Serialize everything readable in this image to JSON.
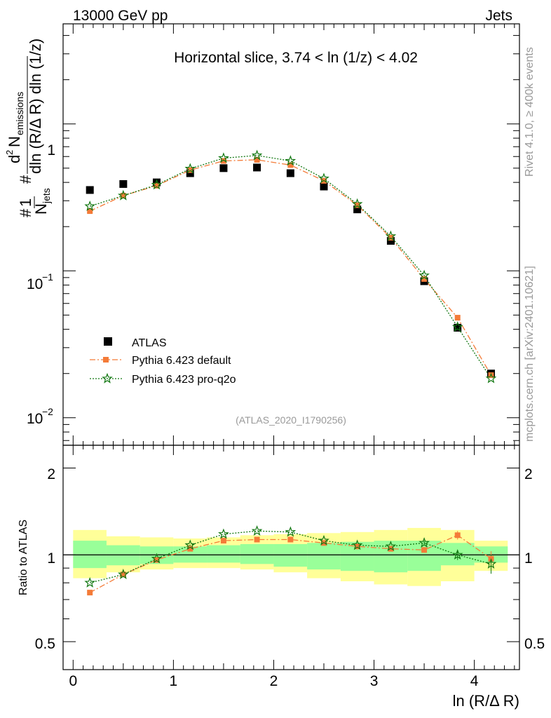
{
  "header": {
    "left": "13000 GeV pp",
    "right": "Jets"
  },
  "side_text": {
    "rivet": "Rivet 4.1.0, ≥ 400k events",
    "mcplots": "mcplots.cern.ch [arXiv:2401.10621]"
  },
  "analysis_id": "(ATLAS_2020_I1790256)",
  "chart_data": [
    {
      "type": "scatter",
      "panel": "main",
      "title": "Horizontal slice, 3.74 < ln (1/z) < 4.02",
      "ylabel": "1/N_jets d²N_emissions / dln(R/ΔR) dln(1/z)",
      "yscale": "log",
      "xlim": [
        -0.1,
        4.45
      ],
      "ylim": [
        0.0065,
        4.8
      ],
      "y_ticks": [
        {
          "value": 0.01,
          "base": "10",
          "exp": "−2"
        },
        {
          "value": 0.1,
          "base": "10",
          "exp": "−1"
        },
        {
          "value": 1,
          "base": "1",
          "exp": ""
        }
      ],
      "x": [
        0.167,
        0.5,
        0.833,
        1.167,
        1.5,
        1.833,
        2.167,
        2.5,
        2.833,
        3.167,
        3.5,
        3.833,
        4.167
      ],
      "series": [
        {
          "name": "ATLAS",
          "color": "#000000",
          "marker": "square",
          "values": [
            0.355,
            0.39,
            0.4,
            0.462,
            0.5,
            0.505,
            0.462,
            0.375,
            0.262,
            0.16,
            0.085,
            0.041,
            0.02
          ]
        },
        {
          "name": "Pythia 6.423 default",
          "color": "#f47b38",
          "marker": "square-small",
          "line": "dash-dot",
          "values": [
            0.255,
            0.325,
            0.38,
            0.485,
            0.56,
            0.57,
            0.525,
            0.41,
            0.28,
            0.168,
            0.088,
            0.048,
            0.0195
          ]
        },
        {
          "name": "Pythia 6.423 pro-q2o",
          "color": "#117711",
          "marker": "star",
          "line": "dotted",
          "values": [
            0.275,
            0.325,
            0.385,
            0.495,
            0.585,
            0.61,
            0.56,
            0.425,
            0.285,
            0.172,
            0.093,
            0.0415,
            0.0185
          ]
        }
      ]
    },
    {
      "type": "line",
      "panel": "ratio",
      "xlabel": "ln (R/Δ R)",
      "ylabel": "Ratio to ATLAS",
      "yscale": "log",
      "xlim": [
        -0.1,
        4.45
      ],
      "ylim": [
        0.4,
        2.4
      ],
      "y_tick_labels": [
        {
          "value": 0.5,
          "label": "0.5"
        },
        {
          "value": 1,
          "label": "1"
        },
        {
          "value": 2,
          "label": "2"
        }
      ],
      "x_tick_labels": [
        {
          "value": 0,
          "label": "0"
        },
        {
          "value": 1,
          "label": "1"
        },
        {
          "value": 2,
          "label": "2"
        },
        {
          "value": 3,
          "label": "3"
        },
        {
          "value": 4,
          "label": "4"
        }
      ],
      "bin_edges": [
        0,
        0.333,
        0.667,
        1.0,
        1.333,
        1.667,
        2.0,
        2.333,
        2.667,
        3.0,
        3.333,
        3.667,
        4.0,
        4.333
      ],
      "band_stat": [
        [
          0.9,
          1.12
        ],
        [
          0.92,
          1.08
        ],
        [
          0.93,
          1.07
        ],
        [
          0.94,
          1.07
        ],
        [
          0.94,
          1.08
        ],
        [
          0.93,
          1.09
        ],
        [
          0.91,
          1.09
        ],
        [
          0.89,
          1.1
        ],
        [
          0.88,
          1.11
        ],
        [
          0.87,
          1.12
        ],
        [
          0.88,
          1.12
        ],
        [
          0.92,
          1.1
        ],
        [
          0.94,
          1.07
        ]
      ],
      "band_total": [
        [
          0.83,
          1.22
        ],
        [
          0.87,
          1.16
        ],
        [
          0.89,
          1.15
        ],
        [
          0.9,
          1.14
        ],
        [
          0.9,
          1.15
        ],
        [
          0.89,
          1.17
        ],
        [
          0.87,
          1.18
        ],
        [
          0.83,
          1.19
        ],
        [
          0.81,
          1.2
        ],
        [
          0.79,
          1.22
        ],
        [
          0.78,
          1.24
        ],
        [
          0.81,
          1.22
        ],
        [
          0.88,
          1.12
        ]
      ],
      "series": [
        {
          "name": "Pythia 6.423 default",
          "color": "#f47b38",
          "values": [
            0.74,
            0.855,
            0.96,
            1.05,
            1.12,
            1.13,
            1.13,
            1.1,
            1.07,
            1.05,
            1.04,
            1.17,
            0.97
          ],
          "errors": [
            0.01,
            0.01,
            0.01,
            0.01,
            0.01,
            0.01,
            0.01,
            0.01,
            0.01,
            0.01,
            0.015,
            0.04,
            0.06
          ]
        },
        {
          "name": "Pythia 6.423 pro-q2o",
          "color": "#117711",
          "values": [
            0.8,
            0.855,
            0.97,
            1.08,
            1.18,
            1.21,
            1.2,
            1.12,
            1.08,
            1.07,
            1.1,
            1.0,
            0.93
          ],
          "errors": [
            0.01,
            0.01,
            0.01,
            0.01,
            0.01,
            0.01,
            0.01,
            0.01,
            0.01,
            0.01,
            0.02,
            0.04,
            0.07
          ]
        }
      ]
    }
  ]
}
